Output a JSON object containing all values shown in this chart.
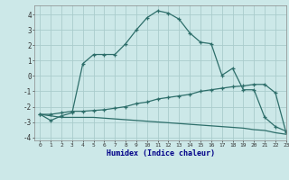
{
  "xlabel": "Humidex (Indice chaleur)",
  "xlim": [
    -0.5,
    23
  ],
  "ylim": [
    -4.2,
    4.6
  ],
  "background_color": "#cce8e8",
  "grid_color": "#aacccc",
  "line_color": "#2d6e6a",
  "x": [
    0,
    1,
    2,
    3,
    4,
    5,
    6,
    7,
    8,
    9,
    10,
    11,
    12,
    13,
    14,
    15,
    16,
    17,
    18,
    19,
    20,
    21,
    22,
    23
  ],
  "curve1": [
    -2.5,
    -2.9,
    -2.6,
    -2.4,
    0.8,
    1.4,
    1.4,
    1.4,
    2.1,
    3.0,
    3.8,
    4.25,
    4.1,
    3.7,
    2.8,
    2.2,
    2.1,
    0.05,
    0.5,
    -0.9,
    -0.9,
    -2.7,
    -3.3,
    -3.6
  ],
  "curve2": [
    -2.5,
    -2.5,
    -2.4,
    -2.3,
    -2.3,
    -2.25,
    -2.2,
    -2.1,
    -2.0,
    -1.8,
    -1.7,
    -1.5,
    -1.4,
    -1.3,
    -1.2,
    -1.0,
    -0.9,
    -0.8,
    -0.7,
    -0.65,
    -0.55,
    -0.55,
    -1.1,
    -3.7
  ],
  "curve3": [
    -2.5,
    -2.6,
    -2.7,
    -2.7,
    -2.7,
    -2.7,
    -2.75,
    -2.8,
    -2.85,
    -2.9,
    -2.95,
    -3.0,
    -3.05,
    -3.1,
    -3.15,
    -3.2,
    -3.25,
    -3.3,
    -3.35,
    -3.4,
    -3.5,
    -3.55,
    -3.7,
    -3.8
  ],
  "yticks": [
    -4,
    -3,
    -2,
    -1,
    0,
    1,
    2,
    3,
    4
  ],
  "xtick_labels": [
    "0",
    "1",
    "2",
    "3",
    "4",
    "5",
    "6",
    "7",
    "8",
    "9",
    "10",
    "11",
    "12",
    "13",
    "14",
    "15",
    "16",
    "17",
    "18",
    "19",
    "20",
    "21",
    "22",
    "23"
  ]
}
